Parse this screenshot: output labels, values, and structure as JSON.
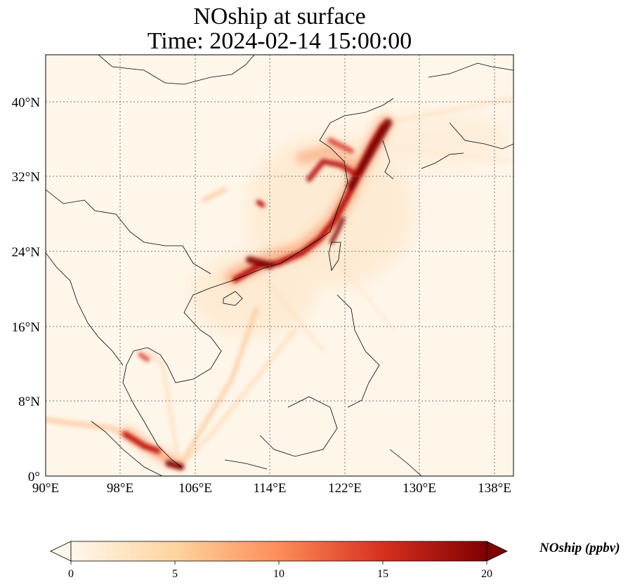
{
  "title_line1": "NOship at surface",
  "title_line2": "Time: 2024-02-14 15:00:00",
  "map": {
    "lon_range": [
      90,
      140
    ],
    "lat_range": [
      0,
      45
    ],
    "lon_ticks": [
      "90°E",
      "98°E",
      "106°E",
      "114°E",
      "122°E",
      "130°E",
      "138°E"
    ],
    "lat_ticks": [
      "0°",
      "8°N",
      "16°N",
      "24°N",
      "32°N",
      "40°N"
    ],
    "gridlines": "dotted",
    "colormap": "OrRd",
    "hotspots": [
      "Bohai Sea / Yellow Sea",
      "East China Sea coast",
      "Taiwan Strait",
      "Pearl River Delta",
      "Gulf of Thailand",
      "Strait of Malacca",
      "Singapore"
    ]
  },
  "colorbar": {
    "label": "NOship (ppbv)",
    "ticks": [
      "0",
      "5",
      "10",
      "15",
      "20"
    ],
    "range": [
      0,
      20
    ],
    "extend": "both",
    "colors": [
      "#fff7ec",
      "#fdd49e",
      "#fc8d59",
      "#d7301f",
      "#7f0000"
    ]
  }
}
